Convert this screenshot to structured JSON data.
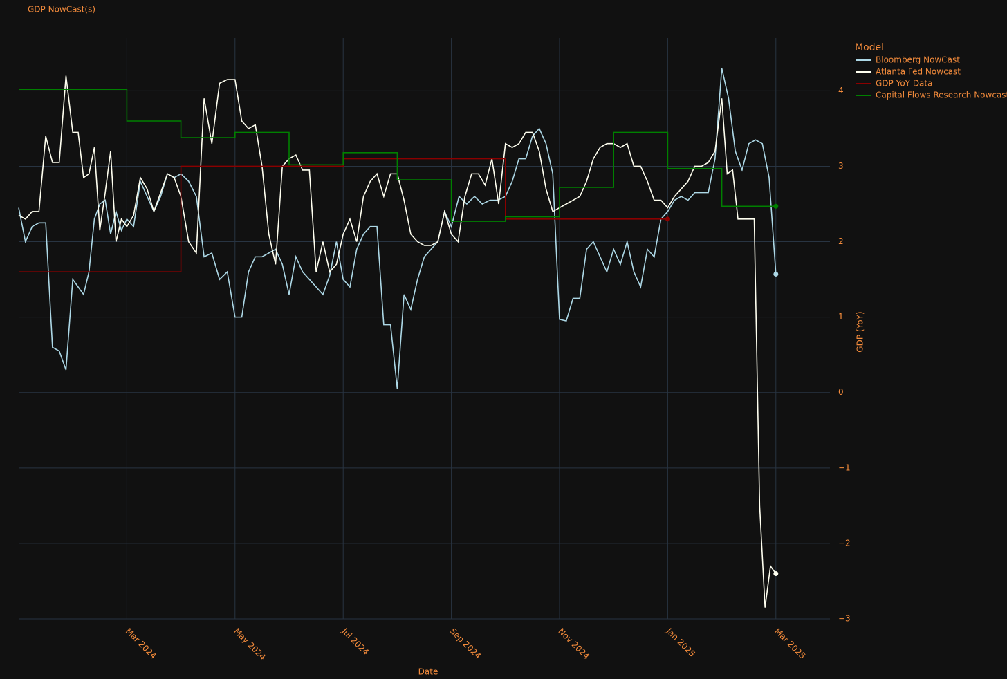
{
  "chart_data": {
    "type": "line",
    "title": "GDP NowCast(s)",
    "x_label": "Date",
    "y_label": "GDP (YoY)",
    "legend_title": "Model",
    "legend_position": "outside-right",
    "grid": true,
    "xlim": [
      "Jan 2024",
      "Apr 2025"
    ],
    "xticks": [
      "Mar 2024",
      "May 2024",
      "Jul 2024",
      "Sep 2024",
      "Nov 2024",
      "Jan 2025",
      "Mar 2025"
    ],
    "ylim": [
      -3,
      4.7
    ],
    "yticks": [
      {
        "value": -3,
        "label": "−3"
      },
      {
        "value": -2,
        "label": "−2"
      },
      {
        "value": -1,
        "label": "−1"
      },
      0,
      1,
      2,
      3,
      4
    ],
    "series": [
      {
        "name": "Bloomberg NowCast",
        "color": "#add8e6",
        "shape": "linear",
        "end_marker": true,
        "x": [
          "Jan 2024",
          "Jan 2024",
          "Jan 2024",
          "Jan 2024",
          "Jan 2024",
          "Jan 2024",
          "Jan 2024",
          "Jan 2024",
          "Feb 2024",
          "Feb 2024",
          "Feb 2024",
          "Feb 2024",
          "Feb 2024",
          "Feb 2024",
          "Feb 2024",
          "Feb 2024",
          "Feb 2024",
          "Feb 2024",
          "Mar 2024",
          "Mar 2024",
          "Mar 2024",
          "Mar 2024",
          "Mar 2024",
          "Mar 2024",
          "Mar 2024",
          "Mar 2024",
          "Apr 2024",
          "Apr 2024",
          "Apr 2024",
          "Apr 2024",
          "Apr 2024",
          "Apr 2024",
          "Apr 2024",
          "May 2024",
          "May 2024",
          "May 2024",
          "May 2024",
          "May 2024",
          "May 2024",
          "May 2024",
          "May 2024",
          "Jun 2024",
          "Jun 2024",
          "Jun 2024",
          "Jun 2024",
          "Jun 2024",
          "Jun 2024",
          "Jun 2024",
          "Jun 2024",
          "Jul 2024",
          "Jul 2024",
          "Jul 2024",
          "Jul 2024",
          "Jul 2024",
          "Jul 2024",
          "Jul 2024",
          "Jul 2024",
          "Aug 2024",
          "Aug 2024",
          "Aug 2024",
          "Aug 2024",
          "Aug 2024",
          "Aug 2024",
          "Aug 2024",
          "Aug 2024",
          "Sep 2024",
          "Sep 2024",
          "Sep 2024",
          "Sep 2024",
          "Sep 2024",
          "Sep 2024",
          "Sep 2024",
          "Oct 2024",
          "Oct 2024",
          "Oct 2024",
          "Oct 2024",
          "Oct 2024",
          "Oct 2024",
          "Oct 2024",
          "Oct 2024",
          "Nov 2024",
          "Nov 2024",
          "Nov 2024",
          "Nov 2024",
          "Nov 2024",
          "Nov 2024",
          "Nov 2024",
          "Nov 2024",
          "Dec 2024",
          "Dec 2024",
          "Dec 2024",
          "Dec 2024",
          "Dec 2024",
          "Dec 2024",
          "Dec 2024",
          "Dec 2024",
          "Jan 2025",
          "Jan 2025",
          "Jan 2025",
          "Jan 2025",
          "Jan 2025",
          "Jan 2025",
          "Jan 2025",
          "Jan 2025",
          "Feb 2025",
          "Feb 2025",
          "Feb 2025",
          "Feb 2025",
          "Feb 2025",
          "Feb 2025",
          "Feb 2025",
          "Feb 2025",
          "Mar 2025"
        ],
        "values": [
          2.45,
          2.0,
          2.2,
          2.25,
          2.25,
          0.6,
          0.55,
          0.3,
          1.5,
          1.4,
          1.3,
          1.6,
          2.3,
          2.5,
          2.55,
          2.1,
          2.4,
          2.15,
          2.3,
          2.2,
          2.8,
          2.6,
          2.4,
          2.6,
          2.9,
          2.85,
          2.9,
          2.8,
          2.6,
          1.8,
          1.85,
          1.5,
          1.6,
          1.0,
          1.0,
          1.6,
          1.8,
          1.8,
          1.85,
          1.9,
          1.7,
          1.3,
          1.8,
          1.6,
          1.5,
          1.4,
          1.3,
          1.55,
          2.0,
          1.5,
          1.4,
          1.9,
          2.1,
          2.2,
          2.2,
          0.9,
          0.9,
          0.05,
          1.3,
          1.1,
          1.5,
          1.8,
          1.9,
          2.0,
          2.4,
          2.2,
          2.6,
          2.5,
          2.6,
          2.5,
          2.55,
          2.55,
          2.6,
          2.8,
          3.1,
          3.1,
          3.4,
          3.5,
          3.3,
          2.9,
          0.97,
          0.95,
          1.25,
          1.25,
          1.9,
          2.0,
          1.8,
          1.6,
          1.9,
          1.7,
          2.0,
          1.6,
          1.4,
          1.9,
          1.8,
          2.3,
          2.4,
          2.55,
          2.6,
          2.55,
          2.65,
          2.65,
          2.65,
          3.1,
          4.3,
          3.9,
          3.2,
          2.95,
          3.3,
          3.35,
          3.3,
          2.85,
          1.57
        ]
      },
      {
        "name": "Atlanta Fed Nowcast",
        "color": "#fffff0",
        "shape": "linear",
        "end_marker": true,
        "x": [
          "Jan 2024",
          "Jan 2024",
          "Jan 2024",
          "Jan 2024",
          "Jan 2024",
          "Jan 2024",
          "Jan 2024",
          "Jan 2024",
          "Feb 2024",
          "Feb 2024",
          "Feb 2024",
          "Feb 2024",
          "Feb 2024",
          "Feb 2024",
          "Feb 2024",
          "Feb 2024",
          "Feb 2024",
          "Feb 2024",
          "Mar 2024",
          "Mar 2024",
          "Mar 2024",
          "Mar 2024",
          "Mar 2024",
          "Mar 2024",
          "Mar 2024",
          "Mar 2024",
          "Apr 2024",
          "Apr 2024",
          "Apr 2024",
          "Apr 2024",
          "Apr 2024",
          "Apr 2024",
          "Apr 2024",
          "May 2024",
          "May 2024",
          "May 2024",
          "May 2024",
          "May 2024",
          "May 2024",
          "May 2024",
          "May 2024",
          "Jun 2024",
          "Jun 2024",
          "Jun 2024",
          "Jun 2024",
          "Jun 2024",
          "Jun 2024",
          "Jun 2024",
          "Jun 2024",
          "Jul 2024",
          "Jul 2024",
          "Jul 2024",
          "Jul 2024",
          "Jul 2024",
          "Jul 2024",
          "Jul 2024",
          "Jul 2024",
          "Aug 2024",
          "Aug 2024",
          "Aug 2024",
          "Aug 2024",
          "Aug 2024",
          "Aug 2024",
          "Aug 2024",
          "Aug 2024",
          "Sep 2024",
          "Sep 2024",
          "Sep 2024",
          "Sep 2024",
          "Sep 2024",
          "Sep 2024",
          "Sep 2024",
          "Sep 2024",
          "Oct 2024",
          "Oct 2024",
          "Oct 2024",
          "Oct 2024",
          "Oct 2024",
          "Oct 2024",
          "Oct 2024",
          "Oct 2024",
          "Nov 2024",
          "Nov 2024",
          "Nov 2024",
          "Nov 2024",
          "Nov 2024",
          "Nov 2024",
          "Nov 2024",
          "Nov 2024",
          "Dec 2024",
          "Dec 2024",
          "Dec 2024",
          "Dec 2024",
          "Dec 2024",
          "Dec 2024",
          "Dec 2024",
          "Dec 2024",
          "Jan 2025",
          "Jan 2025",
          "Jan 2025",
          "Jan 2025",
          "Jan 2025",
          "Jan 2025",
          "Jan 2025",
          "Jan 2025",
          "Feb 2025",
          "Feb 2025",
          "Feb 2025",
          "Feb 2025",
          "Feb 2025",
          "Feb 2025",
          "Feb 2025",
          "Feb 2025",
          "Feb 2025",
          "Feb 2025",
          "Mar 2025"
        ],
        "values": [
          2.35,
          2.3,
          2.4,
          2.4,
          3.4,
          3.05,
          3.05,
          4.2,
          3.45,
          3.45,
          2.85,
          2.9,
          3.25,
          2.15,
          2.65,
          3.2,
          2.0,
          2.3,
          2.2,
          2.35,
          2.85,
          2.7,
          2.4,
          2.65,
          2.9,
          2.85,
          2.6,
          2.0,
          1.85,
          3.9,
          3.3,
          4.1,
          4.15,
          4.15,
          3.6,
          3.5,
          3.55,
          3.0,
          2.1,
          1.7,
          3.0,
          3.1,
          3.15,
          2.95,
          2.95,
          1.6,
          2.0,
          1.6,
          1.7,
          2.1,
          2.3,
          2.0,
          2.6,
          2.8,
          2.9,
          2.6,
          2.9,
          2.9,
          2.55,
          2.1,
          2.0,
          1.95,
          1.95,
          2.0,
          2.4,
          2.1,
          2.0,
          2.6,
          2.9,
          2.9,
          2.75,
          3.1,
          2.5,
          3.3,
          3.25,
          3.3,
          3.45,
          3.45,
          3.2,
          2.7,
          2.4,
          2.45,
          2.5,
          2.55,
          2.6,
          2.8,
          3.1,
          3.25,
          3.3,
          3.3,
          3.25,
          3.3,
          3.0,
          3.0,
          2.8,
          2.55,
          2.55,
          2.45,
          2.6,
          2.7,
          2.8,
          3.0,
          3.0,
          3.05,
          3.2,
          3.9,
          2.9,
          2.95,
          2.3,
          2.3,
          2.3,
          2.3,
          -1.5,
          -2.85,
          -2.3,
          -2.4
        ]
      },
      {
        "name": "GDP YoY Data",
        "color": "#8b0000",
        "shape": "hv",
        "end_marker": true,
        "x": [
          "Jan 2024",
          "Apr 2024",
          "Jul 2024",
          "Oct 2024",
          "Jan 2025"
        ],
        "values": [
          1.6,
          3.0,
          3.1,
          2.3,
          2.3
        ]
      },
      {
        "name": "Capital Flows Research Nowcast",
        "color": "#008000",
        "shape": "hv",
        "end_marker": true,
        "x": [
          "Jan 2024",
          "Mar 2024",
          "Apr 2024",
          "May 2024",
          "Jun 2024",
          "Jul 2024",
          "Aug 2024",
          "Sep 2024",
          "Oct 2024",
          "Nov 2024",
          "Dec 2024",
          "Jan 2025",
          "Feb 2025",
          "Mar 2025"
        ],
        "values": [
          4.02,
          3.6,
          3.38,
          3.45,
          3.02,
          3.18,
          2.82,
          2.27,
          2.33,
          2.72,
          3.45,
          2.97,
          2.47,
          2.47
        ]
      }
    ]
  }
}
